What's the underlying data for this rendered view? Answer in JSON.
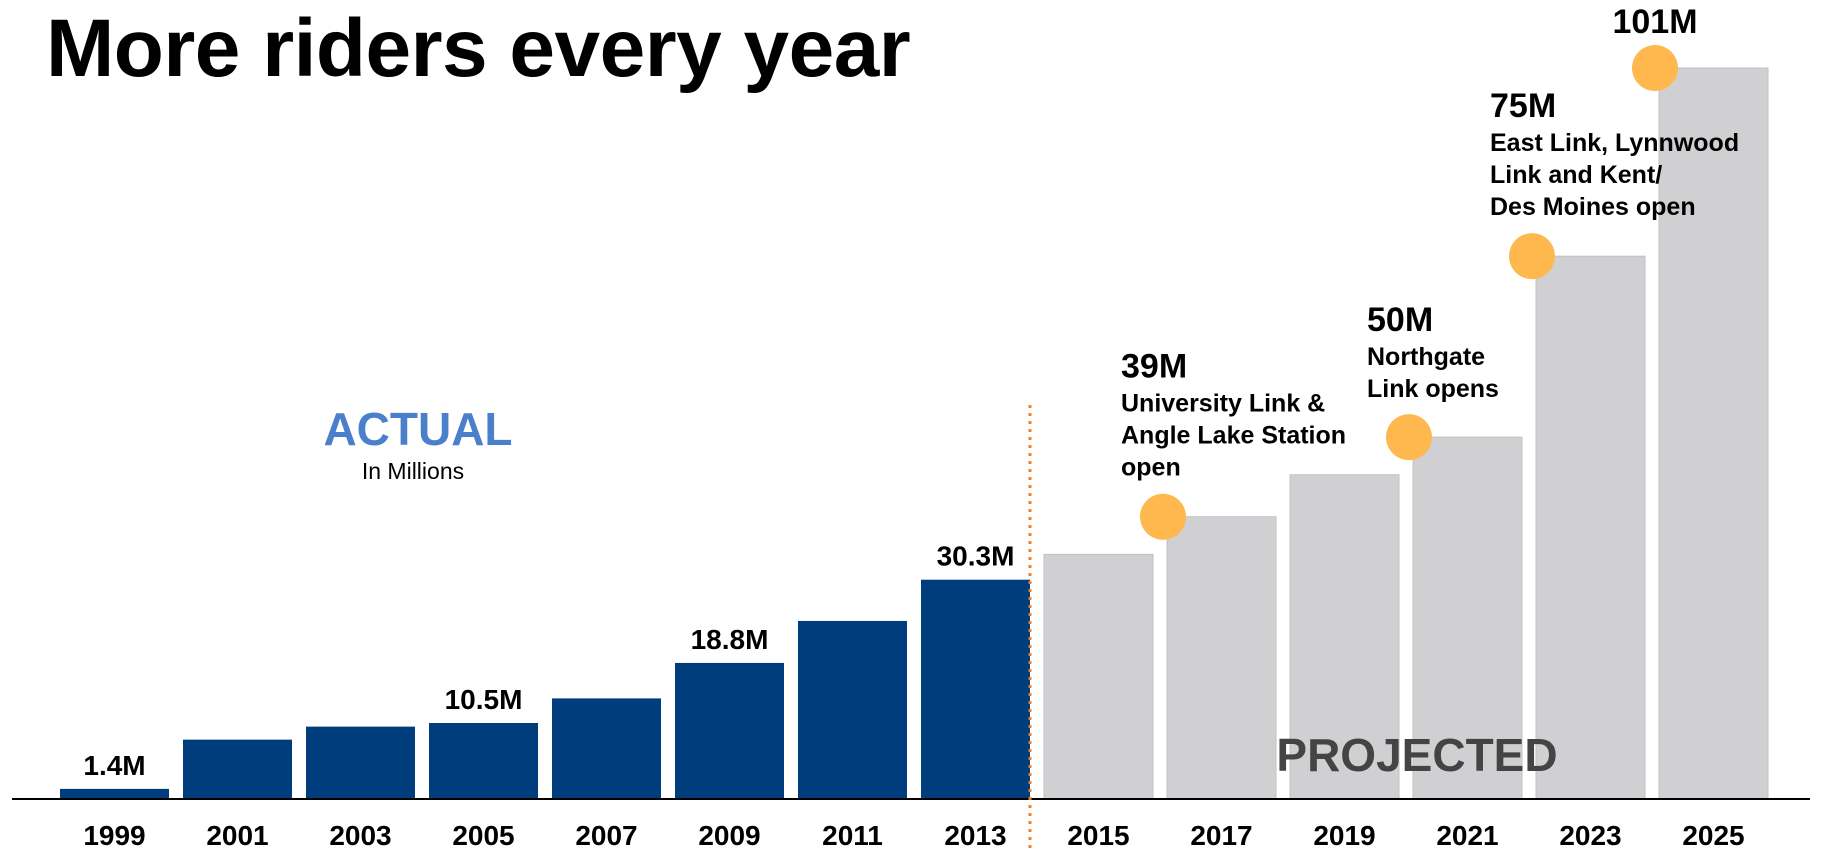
{
  "title": "More riders every year",
  "chart_data": {
    "type": "bar",
    "categories": [
      "1999",
      "2001",
      "2003",
      "2005",
      "2007",
      "2009",
      "2011",
      "2013",
      "2015",
      "2017",
      "2019",
      "2021",
      "2023",
      "2025"
    ],
    "values": [
      1.4,
      8.2,
      10.0,
      10.5,
      13.9,
      18.8,
      24.6,
      30.3,
      33.8,
      39,
      44.8,
      50,
      75,
      101
    ],
    "unit_note": "In Millions",
    "ylim": [
      0,
      101
    ],
    "colors": {
      "actual": "#003d7d",
      "projected": "#d0d0d3",
      "divider": "#f07f32",
      "milestone": "#ffb84d",
      "actual_label": "#4a7fcc",
      "projected_label": "#444444"
    },
    "sections": {
      "actual": {
        "label": "ACTUAL",
        "sublabel": "In Millions"
      },
      "projected": {
        "label": "PROJECTED"
      }
    },
    "data_labels": [
      {
        "category": "1999",
        "text": "1.4M"
      },
      {
        "category": "2005",
        "text": "10.5M"
      },
      {
        "category": "2009",
        "text": "18.8M"
      },
      {
        "category": "2013",
        "text": "30.3M"
      }
    ],
    "milestones": [
      {
        "category": "2017",
        "value": "39M",
        "lines": [
          "University Link &",
          "Angle Lake Station",
          "open"
        ]
      },
      {
        "category": "2021",
        "value": "50M",
        "lines": [
          "Northgate",
          "Link opens"
        ]
      },
      {
        "category": "2023",
        "value": "75M",
        "lines": [
          "East Link, Lynnwood",
          "Link and Kent/",
          "Des Moines open"
        ]
      },
      {
        "category": "2025",
        "value": "101M",
        "lines": []
      }
    ]
  }
}
